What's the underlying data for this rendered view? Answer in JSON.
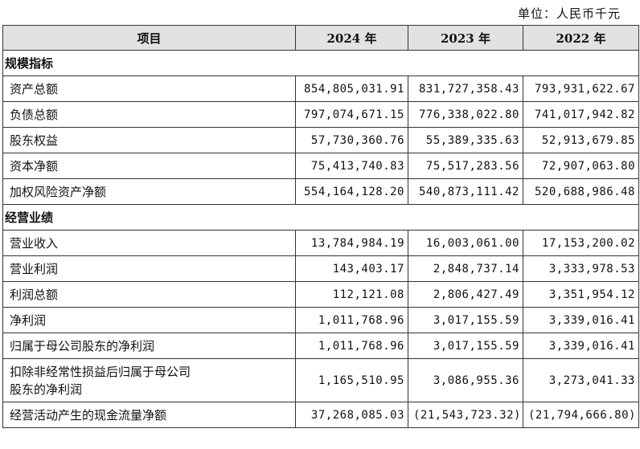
{
  "unit": "单位：人民币千元",
  "headers": [
    "项目",
    "2024 年",
    "2023 年",
    "2022 年"
  ],
  "sections": [
    {
      "title": "规模指标",
      "rows": [
        {
          "label": "资产总额",
          "values": [
            "854,805,031.91",
            "831,727,358.43",
            "793,931,622.67"
          ]
        },
        {
          "label": "负债总额",
          "values": [
            "797,074,671.15",
            "776,338,022.80",
            "741,017,942.82"
          ]
        },
        {
          "label": "股东权益",
          "values": [
            "57,730,360.76",
            "55,389,335.63",
            "52,913,679.85"
          ]
        },
        {
          "label": "资本净额",
          "values": [
            "75,413,740.83",
            "75,517,283.56",
            "72,907,063.80"
          ]
        },
        {
          "label": "加权风险资产净额",
          "values": [
            "554,164,128.20",
            "540,873,111.42",
            "520,688,986.48"
          ]
        }
      ]
    },
    {
      "title": "经营业绩",
      "rows": [
        {
          "label": "营业收入",
          "values": [
            "13,784,984.19",
            "16,003,061.00",
            "17,153,200.02"
          ]
        },
        {
          "label": "营业利润",
          "values": [
            "143,403.17",
            "2,848,737.14",
            "3,333,978.53"
          ]
        },
        {
          "label": "利润总额",
          "values": [
            "112,121.08",
            "2,806,427.49",
            "3,351,954.12"
          ]
        },
        {
          "label": "净利润",
          "values": [
            "1,011,768.96",
            "3,017,155.59",
            "3,339,016.41"
          ]
        },
        {
          "label": "归属于母公司股东的净利润",
          "values": [
            "1,011,768.96",
            "3,017,155.59",
            "3,339,016.41"
          ]
        },
        {
          "label": "扣除非经常性损益后归属于母公司股东的净利润",
          "label_line1": "扣除非经常性损益后归属于母公司",
          "label_line2": "股东的净利润",
          "values": [
            "1,165,510.95",
            "3,086,955.36",
            "3,273,041.33"
          ]
        },
        {
          "label": "经营活动产生的现金流量净额",
          "values": [
            "37,268,085.03",
            "(21,543,723.32)",
            "(21,794,666.80)"
          ]
        }
      ]
    }
  ]
}
